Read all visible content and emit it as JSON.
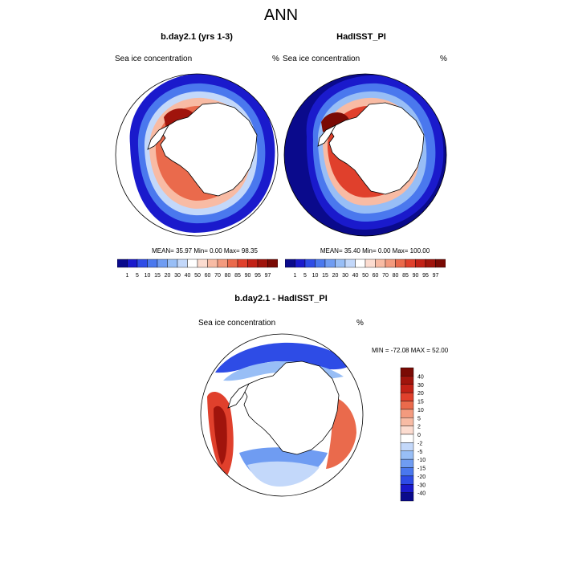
{
  "figure": {
    "title": "ANN",
    "variable": "Sea ice concentration",
    "units": "%"
  },
  "palette": {
    "ocean": "#ffffff",
    "land": "#ffffff",
    "coast": "#000000",
    "blues": [
      "#0a0a8c",
      "#1a1acc",
      "#2e4ce6",
      "#4a78ee",
      "#6f9cf2",
      "#98bef6",
      "#c3d8fa"
    ],
    "neutral": "#ffffff",
    "reds": [
      "#fcdcd0",
      "#f8bba4",
      "#f39a7e",
      "#ea6a4c",
      "#e0402c",
      "#c22116",
      "#a0140c",
      "#7a0a04"
    ]
  },
  "top_panels": [
    {
      "title": "b.day2.1 (yrs 1-3)",
      "left_label": "Sea ice concentration",
      "right_label": "%",
      "stats": "MEAN=  35.97  Min=   0.00  Max=  98.35"
    },
    {
      "title": "HadISST_PI",
      "left_label": "Sea ice concentration",
      "right_label": "%",
      "stats": "MEAN=  35.40  Min=   0.00  Max= 100.00"
    }
  ],
  "diff_panel": {
    "title": "b.day2.1 - HadISST_PI",
    "left_label": "Sea ice concentration",
    "right_label": "%",
    "minmax": "MIN = -72.08 MAX =  52.00"
  },
  "chart_data": [
    {
      "type": "heatmap",
      "projection": "south polar stereographic",
      "title": "b.day2.1 (yrs 1-3)",
      "variable": "Sea ice concentration",
      "units": "%",
      "stats": {
        "mean": 35.97,
        "min": 0.0,
        "max": 98.35
      },
      "colorbar": {
        "levels": [
          1,
          5,
          10,
          15,
          20,
          30,
          40,
          50,
          60,
          70,
          80,
          85,
          90,
          95,
          97
        ],
        "labels": [
          "1",
          "5",
          "10",
          "15",
          "20",
          "30",
          "40",
          "50",
          "60",
          "70",
          "80",
          "85",
          "90",
          "95",
          "97"
        ],
        "orientation": "horizontal"
      }
    },
    {
      "type": "heatmap",
      "projection": "south polar stereographic",
      "title": "HadISST_PI",
      "variable": "Sea ice concentration",
      "units": "%",
      "stats": {
        "mean": 35.4,
        "min": 0.0,
        "max": 100.0
      },
      "colorbar": {
        "levels": [
          1,
          5,
          10,
          15,
          20,
          30,
          40,
          50,
          60,
          70,
          80,
          85,
          90,
          95,
          97
        ],
        "labels": [
          "1",
          "5",
          "10",
          "15",
          "20",
          "30",
          "40",
          "50",
          "60",
          "70",
          "80",
          "85",
          "90",
          "95",
          "97"
        ],
        "orientation": "horizontal"
      }
    },
    {
      "type": "heatmap",
      "projection": "south polar stereographic",
      "title": "b.day2.1 - HadISST_PI",
      "variable": "Sea ice concentration",
      "units": "%",
      "stats": {
        "min": -72.08,
        "max": 52.0
      },
      "colorbar": {
        "levels": [
          40,
          30,
          20,
          15,
          10,
          5,
          2,
          0,
          -2,
          -5,
          -10,
          -15,
          -20,
          -30,
          -40
        ],
        "labels": [
          "40",
          "30",
          "20",
          "15",
          "10",
          "5",
          "2",
          "0",
          "-2",
          "-5",
          "-10",
          "-15",
          "-20",
          "-30",
          "-40"
        ],
        "orientation": "vertical"
      }
    }
  ]
}
